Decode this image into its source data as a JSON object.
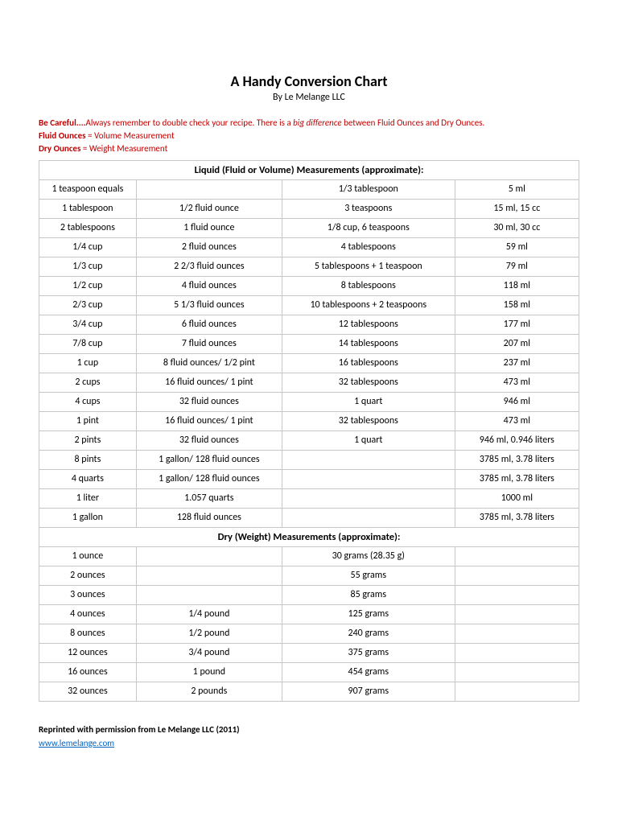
{
  "title": "A Handy Conversion Chart",
  "subtitle": "By Le Melange LLC",
  "warn1a": "Be Careful....",
  "warn1b": "Always remember to double check your recipe. There is a ",
  "warn1c": "big difference",
  "warn1d": " between Fluid Ounces and Dry Ounces.",
  "warn2a": "Fluid Ounces",
  "warn2b": " = Volume Measurement",
  "warn3a": "Dry Ounces",
  "warn3b": " = Weight Measurement",
  "liquidHeader": "Liquid (Fluid or Volume) Measurements (approximate):",
  "dryHeader": "Dry (Weight) Measurements (approximate):",
  "liquid": [
    [
      "1 teaspoon equals",
      "",
      "1/3 tablespoon",
      "5 ml"
    ],
    [
      "1 tablespoon",
      "1/2 fluid ounce",
      "3 teaspoons",
      "15 ml, 15 cc"
    ],
    [
      "2 tablespoons",
      "1 fluid ounce",
      "1/8 cup, 6 teaspoons",
      "30 ml, 30 cc"
    ],
    [
      "1/4 cup",
      "2 fluid ounces",
      "4 tablespoons",
      "59 ml"
    ],
    [
      "1/3 cup",
      "2 2/3 fluid ounces",
      "5 tablespoons + 1 teaspoon",
      "79 ml"
    ],
    [
      "1/2 cup",
      "4 fluid ounces",
      "8 tablespoons",
      "118 ml"
    ],
    [
      "2/3 cup",
      "5 1/3 fluid ounces",
      "10 tablespoons + 2 teaspoons",
      "158 ml"
    ],
    [
      "3/4 cup",
      "6 fluid ounces",
      "12 tablespoons",
      "177 ml"
    ],
    [
      "7/8 cup",
      "7 fluid ounces",
      "14 tablespoons",
      "207 ml"
    ],
    [
      "1 cup",
      "8 fluid ounces/ 1/2 pint",
      "16 tablespoons",
      "237 ml"
    ],
    [
      "2 cups",
      "16 fluid ounces/ 1 pint",
      "32 tablespoons",
      "473 ml"
    ],
    [
      "4 cups",
      "32 fluid ounces",
      "1 quart",
      "946 ml"
    ],
    [
      "1 pint",
      "16 fluid ounces/ 1 pint",
      "32 tablespoons",
      "473 ml"
    ],
    [
      "2 pints",
      "32 fluid ounces",
      "1 quart",
      "946 ml, 0.946 liters"
    ],
    [
      "8 pints",
      "1 gallon/ 128 fluid ounces",
      "",
      "3785 ml, 3.78 liters"
    ],
    [
      "4 quarts",
      "1 gallon/ 128 fluid ounces",
      "",
      "3785 ml, 3.78 liters"
    ],
    [
      "1 liter",
      "1.057 quarts",
      "",
      "1000 ml"
    ],
    [
      "1 gallon",
      "128 fluid ounces",
      "",
      "3785 ml, 3.78 liters"
    ]
  ],
  "dry": [
    [
      "1 ounce",
      "",
      "30 grams (28.35 g)",
      ""
    ],
    [
      "2 ounces",
      "",
      "55 grams",
      ""
    ],
    [
      "3 ounces",
      "",
      "85 grams",
      ""
    ],
    [
      "4 ounces",
      "1/4 pound",
      "125 grams",
      ""
    ],
    [
      "8 ounces",
      "1/2 pound",
      "240 grams",
      ""
    ],
    [
      "12 ounces",
      "3/4 pound",
      "375 grams",
      ""
    ],
    [
      "16 ounces",
      "1 pound",
      "454 grams",
      ""
    ],
    [
      "32 ounces",
      "2 pounds",
      "907 grams",
      ""
    ]
  ],
  "footer": "Reprinted with permission from Le Melange LLC (2011)",
  "link": "www.lemelange.com",
  "colors": {
    "warn": "#c00000",
    "border": "#c7c7c7",
    "link": "#0563c1",
    "bg": "#ffffff",
    "text": "#000000"
  }
}
